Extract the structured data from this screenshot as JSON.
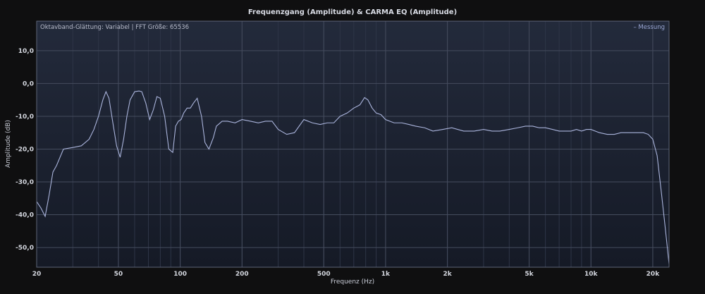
{
  "chart_data": {
    "type": "line",
    "title": "Frequenzgang (Amplitude) & CARMA EQ (Amplitude)",
    "info_text": "Oktavband-Glättung: Variabel | FFT Größe: 65536",
    "xlabel": "Frequenz (Hz)",
    "ylabel": "Amplitude (dB)",
    "x_scale": "log",
    "xlim": [
      20,
      24000
    ],
    "ylim": [
      -56,
      19
    ],
    "x_ticks": [
      {
        "value": 20,
        "label": "20"
      },
      {
        "value": 50,
        "label": "50"
      },
      {
        "value": 100,
        "label": "100"
      },
      {
        "value": 200,
        "label": "200"
      },
      {
        "value": 500,
        "label": "500"
      },
      {
        "value": 1000,
        "label": "1k"
      },
      {
        "value": 2000,
        "label": "2k"
      },
      {
        "value": 5000,
        "label": "5k"
      },
      {
        "value": 10000,
        "label": "10k"
      },
      {
        "value": 20000,
        "label": "20k"
      }
    ],
    "y_ticks": [
      {
        "value": 10,
        "label": "10,0"
      },
      {
        "value": 0,
        "label": "0,0"
      },
      {
        "value": -10,
        "label": "-10,0"
      },
      {
        "value": -20,
        "label": "-20,0"
      },
      {
        "value": -30,
        "label": "-30,0"
      },
      {
        "value": -40,
        "label": "-40,0"
      },
      {
        "value": -50,
        "label": "-50,0"
      }
    ],
    "legend_position": "top-right",
    "grid": true,
    "series": [
      {
        "name": "Messung",
        "color": "#aab4dc",
        "x": [
          20,
          21,
          22,
          23,
          24,
          25,
          27,
          30,
          33,
          36,
          38,
          40,
          42,
          43.5,
          45,
          47,
          49,
          51,
          53,
          55,
          57,
          60,
          63,
          65,
          68,
          71,
          74,
          77,
          80,
          84,
          88,
          92,
          95,
          98,
          101,
          104,
          108,
          112,
          116,
          121,
          127,
          132,
          138,
          145,
          150,
          160,
          170,
          185,
          200,
          220,
          240,
          260,
          280,
          300,
          330,
          360,
          400,
          440,
          480,
          520,
          560,
          600,
          650,
          700,
          750,
          790,
          820,
          860,
          900,
          950,
          1000,
          1100,
          1200,
          1300,
          1400,
          1550,
          1700,
          1900,
          2100,
          2400,
          2700,
          3000,
          3300,
          3600,
          4000,
          4400,
          4800,
          5200,
          5600,
          6000,
          6500,
          7000,
          7500,
          8000,
          8500,
          9000,
          9500,
          10000,
          11000,
          12000,
          13000,
          14000,
          15000,
          16000,
          17000,
          18000,
          19000,
          20000,
          21000,
          22000,
          23000,
          24000
        ],
        "y": [
          -36,
          -38,
          -40.5,
          -34,
          -27,
          -25,
          -20,
          -19.5,
          -19,
          -17,
          -14,
          -10,
          -5,
          -2.5,
          -4.5,
          -12,
          -19,
          -22.5,
          -17,
          -10,
          -5,
          -2.5,
          -2.3,
          -2.5,
          -6,
          -11,
          -8,
          -4,
          -4.5,
          -10,
          -20,
          -21,
          -13,
          -11.5,
          -11,
          -9,
          -7.5,
          -7.5,
          -6,
          -4.5,
          -10,
          -18,
          -20,
          -16.5,
          -13,
          -11.5,
          -11.5,
          -12,
          -11,
          -11.5,
          -12,
          -11.5,
          -11.5,
          -14,
          -15.5,
          -15,
          -11,
          -12,
          -12.5,
          -12,
          -12,
          -10,
          -9,
          -7.5,
          -6.5,
          -4.3,
          -5,
          -7.5,
          -9,
          -9.5,
          -11,
          -12,
          -12,
          -12.5,
          -13,
          -13.5,
          -14.5,
          -14,
          -13.5,
          -14.5,
          -14.5,
          -14,
          -14.5,
          -14.5,
          -14,
          -13.5,
          -13,
          -13,
          -13.5,
          -13.5,
          -14,
          -14.5,
          -14.5,
          -14.5,
          -14,
          -14.5,
          -14,
          -14,
          -15,
          -15.5,
          -15.5,
          -15,
          -15,
          -15,
          -15,
          -15,
          -15.5,
          -17,
          -22,
          -33,
          -44,
          -55
        ]
      }
    ]
  }
}
